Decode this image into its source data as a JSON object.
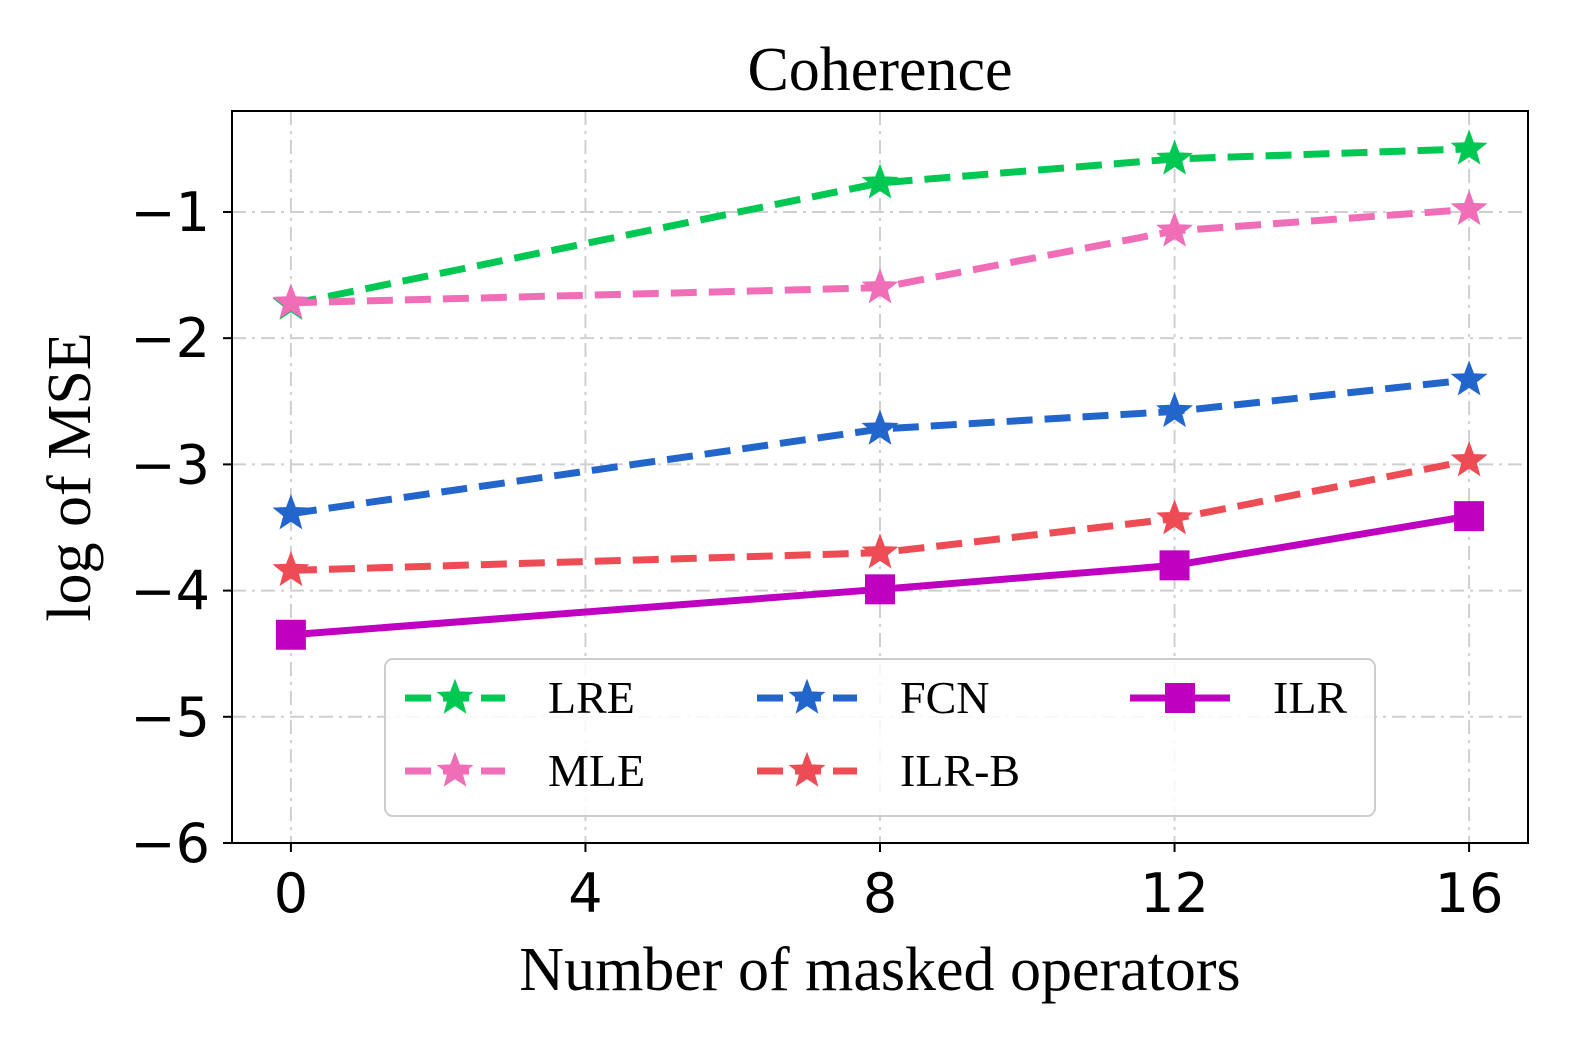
{
  "chart_data": {
    "type": "line",
    "title": "Coherence",
    "xlabel": "Number of masked operators",
    "ylabel": "log of MSE",
    "x": [
      0,
      8,
      12,
      16
    ],
    "xticks": [
      0,
      4,
      8,
      12,
      16
    ],
    "xtick_labels": [
      "0",
      "4",
      "8",
      "12",
      "16"
    ],
    "yticks": [
      -6,
      -5,
      -4,
      -3,
      -2,
      -1
    ],
    "ytick_labels": [
      "−6",
      "−5",
      "−4",
      "−3",
      "−2",
      "−1"
    ],
    "xlim": [
      -0.8,
      16.8
    ],
    "ylim": [
      -6,
      -0.2
    ],
    "grid": true,
    "legend_position": "lower-center",
    "series": [
      {
        "name": "LRE",
        "values": [
          -1.73,
          -0.77,
          -0.58,
          -0.5
        ],
        "color": "#00c853",
        "linestyle": "dashed",
        "marker": "star"
      },
      {
        "name": "MLE",
        "values": [
          -1.72,
          -1.6,
          -1.15,
          -0.98
        ],
        "color": "#f06eb8",
        "linestyle": "dashed",
        "marker": "star"
      },
      {
        "name": "FCN",
        "values": [
          -3.39,
          -2.72,
          -2.58,
          -2.33
        ],
        "color": "#2266cc",
        "linestyle": "dashed",
        "marker": "star"
      },
      {
        "name": "ILR-B",
        "values": [
          -3.84,
          -3.7,
          -3.43,
          -2.97
        ],
        "color": "#ee4c55",
        "linestyle": "dashed",
        "marker": "star"
      },
      {
        "name": "ILR",
        "values": [
          -4.35,
          -3.99,
          -3.8,
          -3.41
        ],
        "color": "#c000c0",
        "linestyle": "solid",
        "marker": "square"
      }
    ],
    "legend_order": [
      "LRE",
      "FCN",
      "ILR",
      "MLE",
      "ILR-B"
    ]
  }
}
